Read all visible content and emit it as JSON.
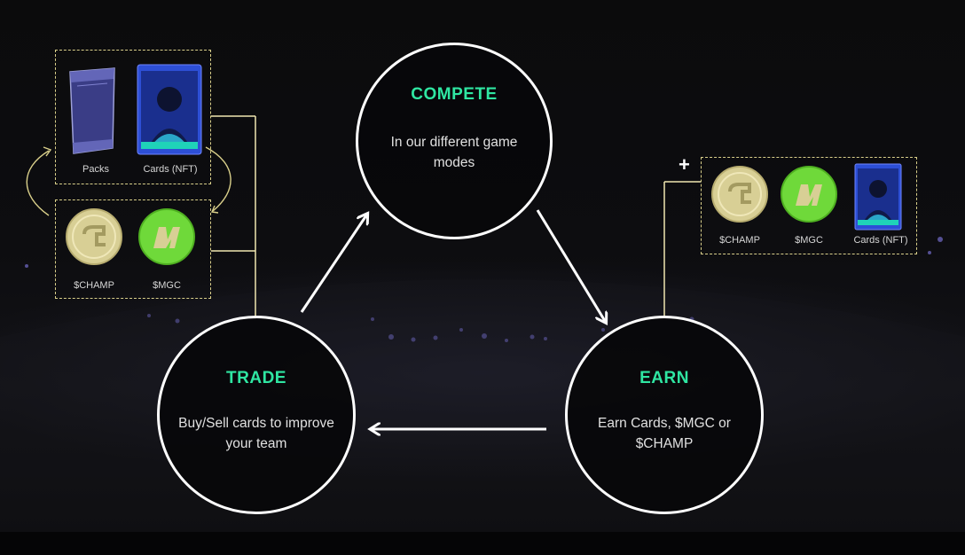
{
  "cycle": {
    "compete": {
      "title": "COMPETE",
      "description": "In our different game modes"
    },
    "earn": {
      "title": "EARN",
      "description": "Earn Cards, $MGC or $CHAMP"
    },
    "trade": {
      "title": "TRADE",
      "description": "Buy/Sell cards to improve your team"
    }
  },
  "trade_assets": {
    "top_row": {
      "packs_label": "Packs",
      "cards_label": "Cards (NFT)"
    },
    "bottom_row": {
      "champ_label": "$CHAMP",
      "mgc_label": "$MGC"
    }
  },
  "earn_rewards": {
    "plus": "+",
    "champ_label": "$CHAMP",
    "mgc_label": "$MGC",
    "cards_label": "Cards (NFT)"
  },
  "colors": {
    "accent": "#2fe6a2",
    "dashed_border": "#d9cf8a",
    "coin_gold": "#d8cf95",
    "coin_green": "#6fd93a",
    "card_blue": "#2d4fd6"
  }
}
